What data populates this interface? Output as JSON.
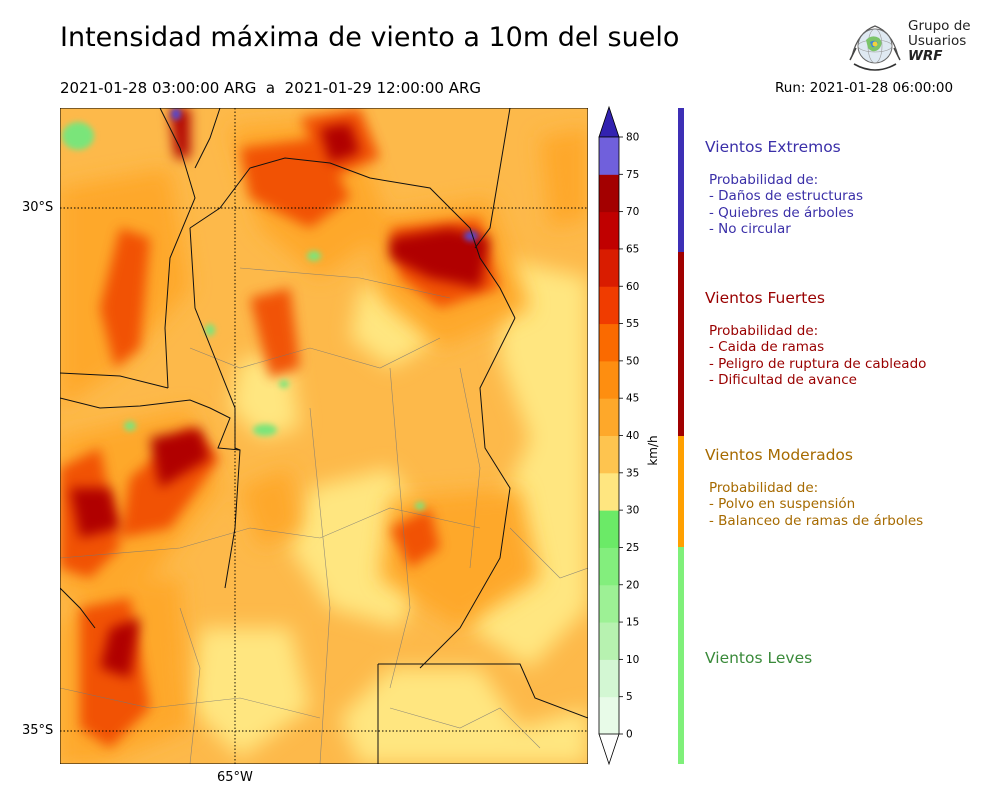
{
  "header": {
    "title": "Intensidad máxima de viento a 10m del suelo",
    "period": "2021-01-28 03:00:00 ARG  a  2021-01-29 12:00:00 ARG",
    "run": "Run: 2021-01-28 06:00:00"
  },
  "logo": {
    "line1": "Grupo de",
    "line2": "Usuarios",
    "line3": "WRF"
  },
  "map": {
    "lat_labels": [
      "30°S",
      "35°S"
    ],
    "lon_labels": [
      "65°W"
    ]
  },
  "colorbar": {
    "unit": "km/h",
    "ticks": [
      "0",
      "5",
      "10",
      "15",
      "20",
      "25",
      "30",
      "35",
      "40",
      "45",
      "50",
      "55",
      "60",
      "65",
      "70",
      "75",
      "80"
    ],
    "colors": [
      "#e8fbe8",
      "#d3f7d3",
      "#b7f2b0",
      "#9df195",
      "#83ee7d",
      "#6bea67",
      "#ffe680",
      "#fec44f",
      "#fea82a",
      "#fe8e10",
      "#fa6a00",
      "#f03c00",
      "#d91c00",
      "#c00000",
      "#a30000",
      "#7060dc",
      "#5548d0",
      "#3a30c0"
    ],
    "extend_low": "#ffffff",
    "extend_high": "#3222b0"
  },
  "categories": [
    {
      "title": "Vientos Extremos",
      "color": "#3a2fa8",
      "bar_color": "#3d2fb5",
      "lines": [
        "Probabilidad de:",
        "- Daños de estructuras",
        "- Quiebres de árboles",
        "- No circular"
      ]
    },
    {
      "title": "Vientos Fuertes",
      "color": "#990000",
      "bar_color": "#a00000",
      "lines": [
        "Probabilidad de:",
        "- Caida de ramas",
        "- Peligro de ruptura de cableado",
        "- Dificultad de avance"
      ]
    },
    {
      "title": "Vientos Moderados",
      "color": "#a66a00",
      "bar_color": "#ffa000",
      "lines": [
        "Probabilidad de:",
        "- Polvo en suspensión",
        "- Balanceo de ramas de árboles"
      ]
    },
    {
      "title": "Vientos Leves",
      "color": "#3a8a3a",
      "bar_color": "#7ff07a",
      "lines": []
    }
  ]
}
